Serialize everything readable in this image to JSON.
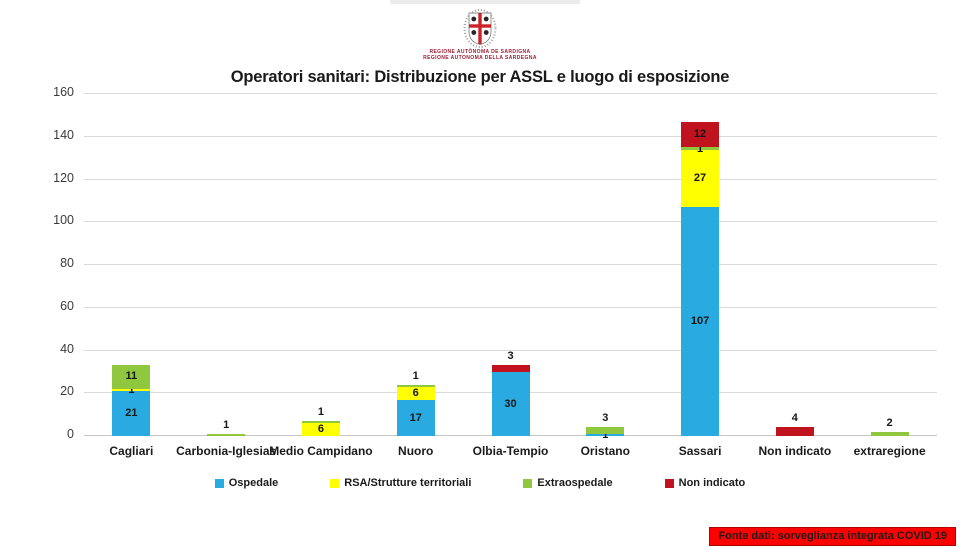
{
  "header": {
    "logo": {
      "icon": "sardinia-crest-icon",
      "line1": "REGIONE AUTÒNOMA DE SARDIGNA",
      "line2": "REGIONE AUTONOMA DELLA SARDEGNA",
      "text_color": "#9e1b32"
    }
  },
  "chart_data": {
    "type": "bar",
    "stacked": true,
    "title": "Operatori sanitari: Distribuzione per ASSL e luogo di esposizione",
    "categories": [
      "Cagliari",
      "Carbonia-Iglesias",
      "Medio Campidano",
      "Nuoro",
      "Olbia-Tempio",
      "Oristano",
      "Sassari",
      "Non indicato",
      "extraregione"
    ],
    "series": [
      {
        "name": "Ospedale",
        "color": "#29abe2",
        "values": [
          21,
          0,
          0,
          17,
          30,
          1,
          107,
          0,
          0
        ]
      },
      {
        "name": "RSA/Strutture territoriali",
        "color": "#ffff00",
        "values": [
          1,
          0,
          6,
          6,
          0,
          0,
          27,
          0,
          0
        ]
      },
      {
        "name": "Extraospedale",
        "color": "#8fc73e",
        "values": [
          11,
          1,
          1,
          1,
          0,
          3,
          1,
          0,
          2
        ]
      },
      {
        "name": "Non indicato",
        "color": "#c0131e",
        "values": [
          0,
          0,
          0,
          0,
          3,
          0,
          12,
          4,
          0
        ]
      }
    ],
    "totals": [
      33,
      1,
      7,
      24,
      33,
      4,
      147,
      4,
      2
    ],
    "xlabel": "",
    "ylabel": "",
    "ylim": [
      0,
      160
    ],
    "yticks": [
      0,
      20,
      40,
      60,
      80,
      100,
      120,
      140,
      160
    ],
    "grid": true,
    "legend_position": "bottom",
    "gridline_color": "#d9d9d9"
  },
  "footer": {
    "source_label": "Fonte dati: sorveglianza integrata COVID 19",
    "background": "#ff0000"
  }
}
